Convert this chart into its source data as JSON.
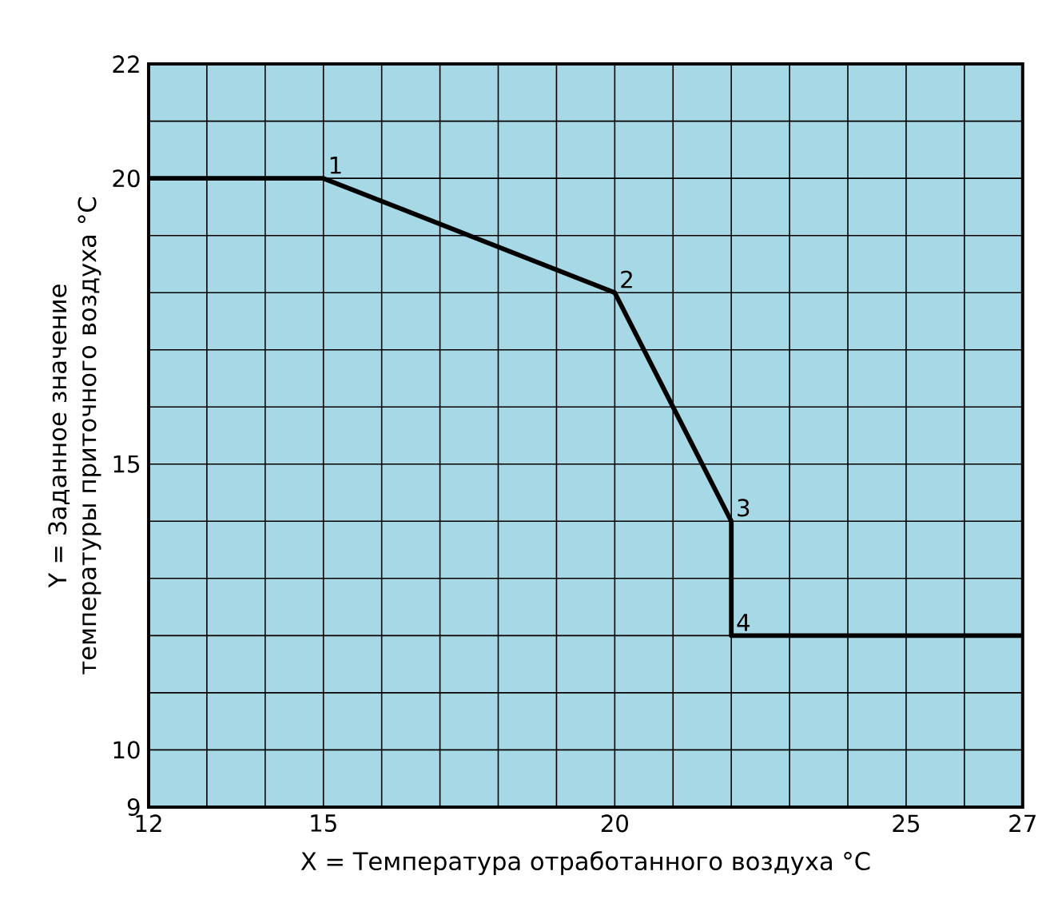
{
  "chart_data": {
    "type": "line",
    "xlabel": "X = Температура отработанного воздуха °C",
    "ylabel": "Y = Заданное значение температуры приточного воздуха °C",
    "x": [
      12,
      15,
      20,
      22,
      22,
      27
    ],
    "series": [
      {
        "color": "#000000",
        "values": [
          20,
          20,
          18,
          14,
          12,
          12
        ]
      }
    ],
    "xlim": [
      12,
      27
    ],
    "ylim": [
      9,
      22
    ],
    "xticks": [
      12,
      {
        "value": 13,
        "label": null
      },
      {
        "value": 14,
        "label": null
      },
      15,
      {
        "value": 16,
        "label": null
      },
      {
        "value": 17,
        "label": null
      },
      {
        "value": 18,
        "label": null
      },
      {
        "value": 19,
        "label": null
      },
      20,
      {
        "value": 21,
        "label": null
      },
      {
        "value": 22,
        "label": null
      },
      {
        "value": 23,
        "label": null
      },
      {
        "value": 24,
        "label": null
      },
      25,
      {
        "value": 26,
        "label": null
      },
      27
    ],
    "yticks": [
      9,
      10,
      {
        "value": 11,
        "label": null
      },
      {
        "value": 12,
        "label": null
      },
      {
        "value": 13,
        "label": null
      },
      {
        "value": 14,
        "label": null
      },
      15,
      {
        "value": 16,
        "label": null
      },
      {
        "value": 17,
        "label": null
      },
      {
        "value": 18,
        "label": null
      },
      {
        "value": 19,
        "label": null
      },
      20,
      {
        "value": 21,
        "label": null
      },
      22
    ],
    "annotations": [
      {
        "text": "1",
        "x": 15,
        "y": 20
      },
      {
        "text": "2",
        "x": 20,
        "y": 18
      },
      {
        "text": "3",
        "x": 22,
        "y": 14
      },
      {
        "text": "4",
        "x": 22,
        "y": 12
      }
    ],
    "grid": true,
    "marker": "none",
    "line_style": "solid"
  }
}
